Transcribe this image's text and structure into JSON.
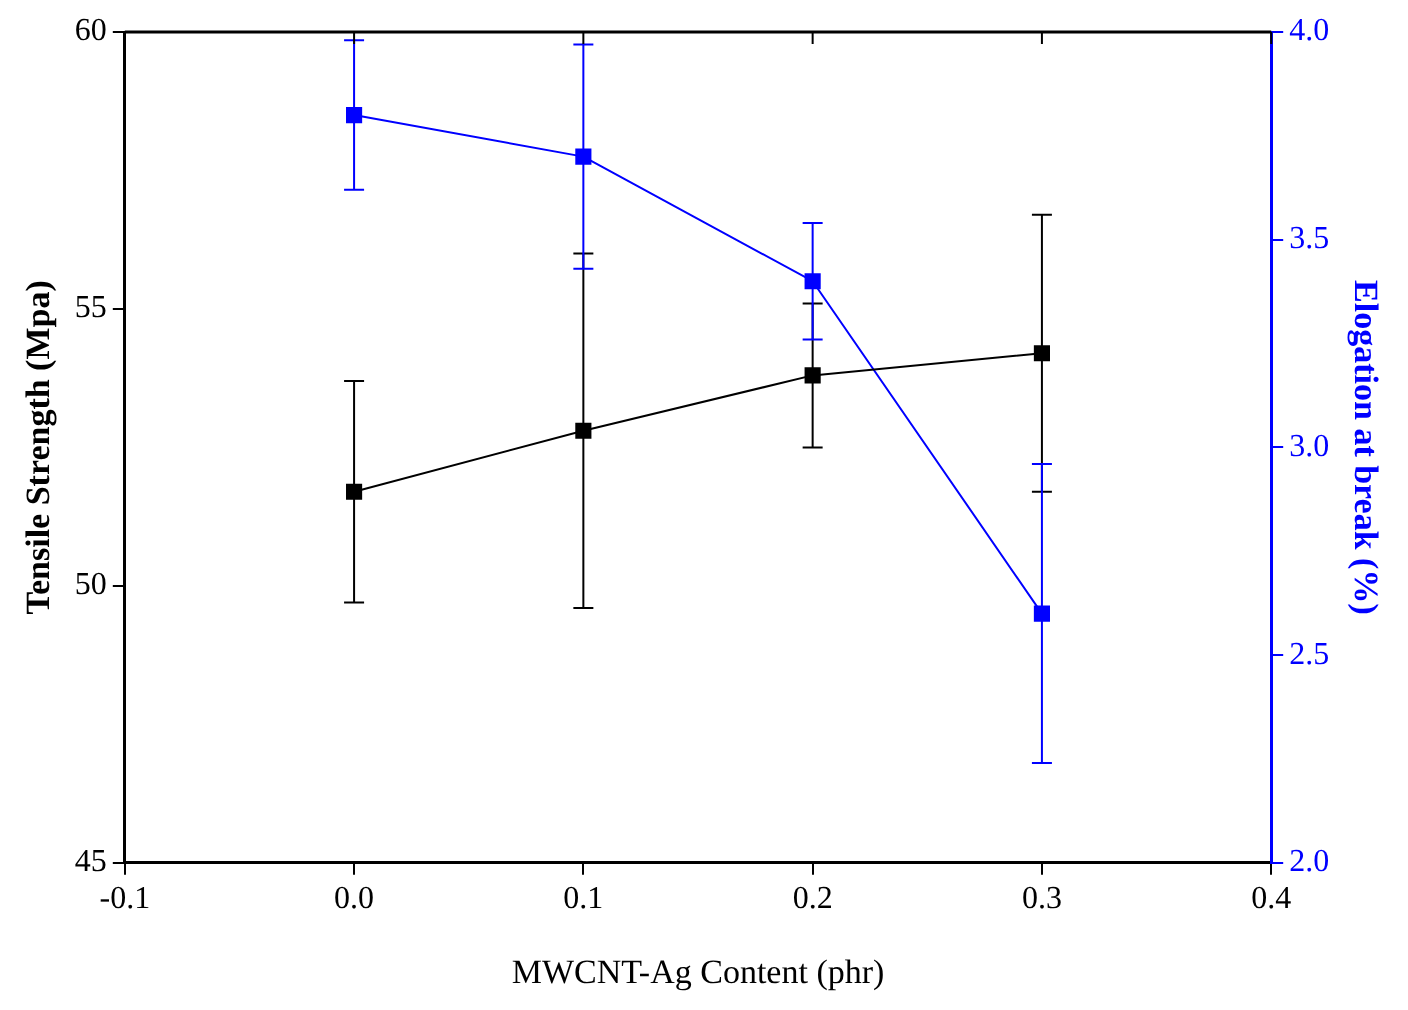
{
  "chart_data": {
    "type": "line",
    "xlabel": "MWCNT-Ag Content (phr)",
    "ylabel": "Tensile Strength (Mpa)",
    "y2label": "Elogation at break (%)",
    "x": [
      0,
      0.1,
      0.2,
      0.3
    ],
    "series": [
      {
        "color": "#000000",
        "values": [
          51.7,
          52.8,
          53.8,
          54.2
        ],
        "errors": [
          2.0,
          3.2,
          1.3,
          2.5
        ]
      },
      {
        "color": "#0000ff",
        "axis": "y2",
        "values": [
          3.8,
          3.7,
          3.4,
          2.6
        ],
        "errors": [
          0.18,
          0.27,
          0.14,
          0.36
        ]
      }
    ],
    "xlim": [
      -0.1,
      0.4
    ],
    "xticks": [
      {
        "value": -0.1,
        "label": "-0.1"
      },
      {
        "value": 0,
        "label": "0.0"
      },
      {
        "value": 0.1,
        "label": "0.1"
      },
      {
        "value": 0.2,
        "label": "0.2"
      },
      {
        "value": 0.3,
        "label": "0.3"
      },
      {
        "value": 0.4,
        "label": "0.4"
      }
    ],
    "ylim": [
      45,
      60
    ],
    "yticks": [
      45,
      50,
      55,
      60
    ],
    "y2lim": [
      2.0,
      4.0
    ],
    "y2ticks": [
      {
        "value": 2,
        "label": "2.0"
      },
      2.5,
      {
        "value": 3,
        "label": "3.0"
      },
      3.5,
      {
        "value": 4,
        "label": "4.0"
      }
    ],
    "marker": "square",
    "line_style": "solid",
    "grid": false,
    "legend": false
  }
}
